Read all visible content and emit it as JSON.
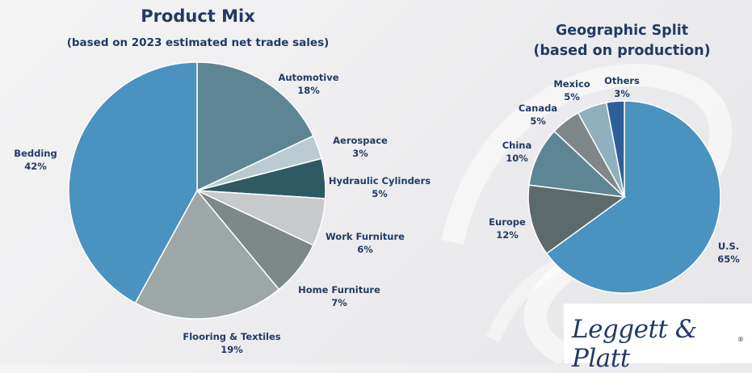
{
  "chart_data": [
    {
      "type": "pie",
      "title": "Product Mix",
      "subtitle": "(based on 2023 estimated net trade sales)",
      "slices": [
        {
          "label": "Automotive",
          "value": 18,
          "display": "18%",
          "color": "#5e8593"
        },
        {
          "label": "Aerospace",
          "value": 3,
          "display": "3%",
          "color": "#b9cbd1"
        },
        {
          "label": "Hydraulic Cylinders",
          "value": 5,
          "display": "5%",
          "color": "#2f5a63"
        },
        {
          "label": "Work Furniture",
          "value": 6,
          "display": "6%",
          "color": "#c6cacb"
        },
        {
          "label": "Home Furniture",
          "value": 7,
          "display": "7%",
          "color": "#7f8889"
        },
        {
          "label": "Flooring & Textiles",
          "value": 19,
          "display": "19%",
          "color": "#9ea7a8"
        },
        {
          "label": "Bedding",
          "value": 42,
          "display": "42%",
          "color": "#4a92c0"
        }
      ]
    },
    {
      "type": "pie",
      "title": "Geographic Split",
      "subtitle": "(based on production)",
      "slices": [
        {
          "label": "U.S.",
          "value": 65,
          "display": "65%",
          "color": "#4a92c0"
        },
        {
          "label": "Europe",
          "value": 12,
          "display": "12%",
          "color": "#5b6a6b"
        },
        {
          "label": "China",
          "value": 10,
          "display": "10%",
          "color": "#5e8593"
        },
        {
          "label": "Canada",
          "value": 5,
          "display": "5%",
          "color": "#7f8889"
        },
        {
          "label": "Mexico",
          "value": 5,
          "display": "5%",
          "color": "#8fb0bc"
        },
        {
          "label": "Others",
          "value": 3,
          "display": "3%",
          "color": "#2e5f99"
        }
      ]
    }
  ],
  "logo": {
    "text": "Leggett & Platt",
    "mark": "®"
  }
}
